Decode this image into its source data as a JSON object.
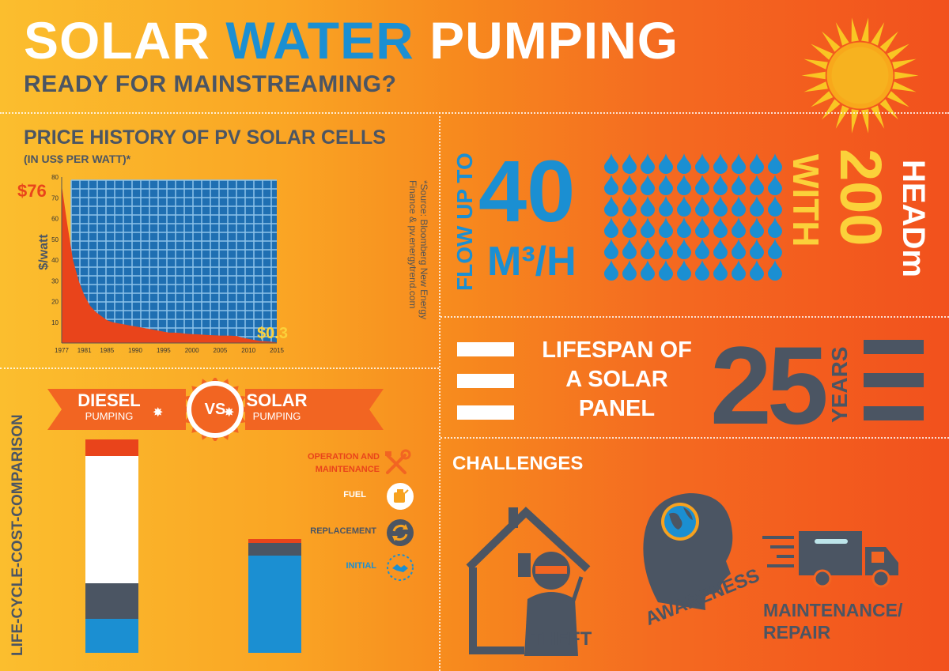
{
  "header": {
    "title_word1": "SOLAR",
    "title_word2": "WATER",
    "title_word3": "PUMPING",
    "subtitle": "READY FOR MAINSTREAMING?"
  },
  "price_chart": {
    "title": "PRICE HISTORY OF PV SOLAR CELLS",
    "subtitle": "(IN US$ PER WATT)*",
    "source_line1": "*Source: Bloomberg New Energy",
    "source_line2": "Finance & pv.energytrend.com"
  },
  "chart_data": {
    "type": "area",
    "title": "PRICE HISTORY OF PV SOLAR CELLS",
    "ylabel": "$/watt",
    "ylim": [
      0,
      80
    ],
    "y_ticks": [
      "10",
      "20",
      "30",
      "40",
      "50",
      "60",
      "70",
      "80"
    ],
    "x_ticks": [
      "1977",
      "1981",
      "1985",
      "1990",
      "1995",
      "2000",
      "2005",
      "2010",
      "2015"
    ],
    "x": [
      1977,
      1978,
      1979,
      1980,
      1981,
      1982,
      1983,
      1984,
      1985,
      1986,
      1987,
      1988,
      1989,
      1990,
      1991,
      1992,
      1993,
      1994,
      1995,
      1996,
      1997,
      1998,
      1999,
      2000,
      2001,
      2002,
      2003,
      2004,
      2005,
      2006,
      2007,
      2008,
      2009,
      2010,
      2011,
      2012,
      2013,
      2014,
      2015
    ],
    "values": [
      76,
      57,
      40,
      30,
      23,
      18,
      15,
      13,
      11,
      10,
      9.5,
      9,
      8.5,
      8,
      7.5,
      7,
      6.5,
      6,
      5.5,
      5,
      5,
      4.8,
      4.5,
      4.3,
      4.2,
      4,
      3.8,
      3.7,
      3.6,
      3.6,
      3.5,
      3.3,
      2.5,
      2,
      1.5,
      1,
      0.8,
      0.6,
      0.3
    ],
    "annotations": [
      {
        "label": "$76",
        "x": 1977,
        "y": 76
      },
      {
        "label": "$0.3",
        "x": 2015,
        "y": 0.3
      }
    ],
    "colors": {
      "area": "#e9441b",
      "panel": "#1f6fb2"
    }
  },
  "life_cycle": {
    "side_label": "LIFE-CYCLE-COST-COMPARISON",
    "diesel_title": "DIESEL",
    "diesel_sub": "PUMPING",
    "solar_title": "SOLAR",
    "solar_sub": "PUMPING",
    "vs": "VS",
    "legend": [
      {
        "line1": "OPERATION AND",
        "line2": "MAINTENANCE",
        "color": "#e9441b",
        "icon": "tools-icon"
      },
      {
        "line1": "FUEL",
        "line2": "",
        "color": "#ffffff",
        "icon": "fuel-can-icon"
      },
      {
        "line1": "REPLACEMENT",
        "line2": "",
        "color": "#4b5563",
        "icon": "refresh-icon"
      },
      {
        "line1": "INITIAL",
        "line2": "",
        "color": "#1b8fd2",
        "icon": "handshake-icon"
      }
    ],
    "diesel_bar": [
      0.08,
      0.64,
      0.18,
      0.17
    ],
    "solar_bar": [
      0.02,
      0,
      0.06,
      0.49
    ]
  },
  "flow": {
    "label": "FLOW UP TO",
    "value": "40",
    "unit": "M³/H",
    "with": "WITH",
    "head_value": "200",
    "head_label": "HEAD",
    "head_sup": "m",
    "drop_color": "#1b8fd2"
  },
  "lifespan": {
    "line1": "LIFESPAN OF",
    "line2": "A SOLAR",
    "line3": "PANEL",
    "value": "25",
    "unit": "YEARS"
  },
  "challenges": {
    "title": "CHALLENGES",
    "items": [
      {
        "label": "THEFT",
        "icon": "house-burglar-icon"
      },
      {
        "label": "AWARENESS",
        "icon": "head-globe-icon"
      },
      {
        "label_line1": "MAINTENANCE/",
        "label_line2": "REPAIR",
        "icon": "truck-icon"
      }
    ]
  }
}
